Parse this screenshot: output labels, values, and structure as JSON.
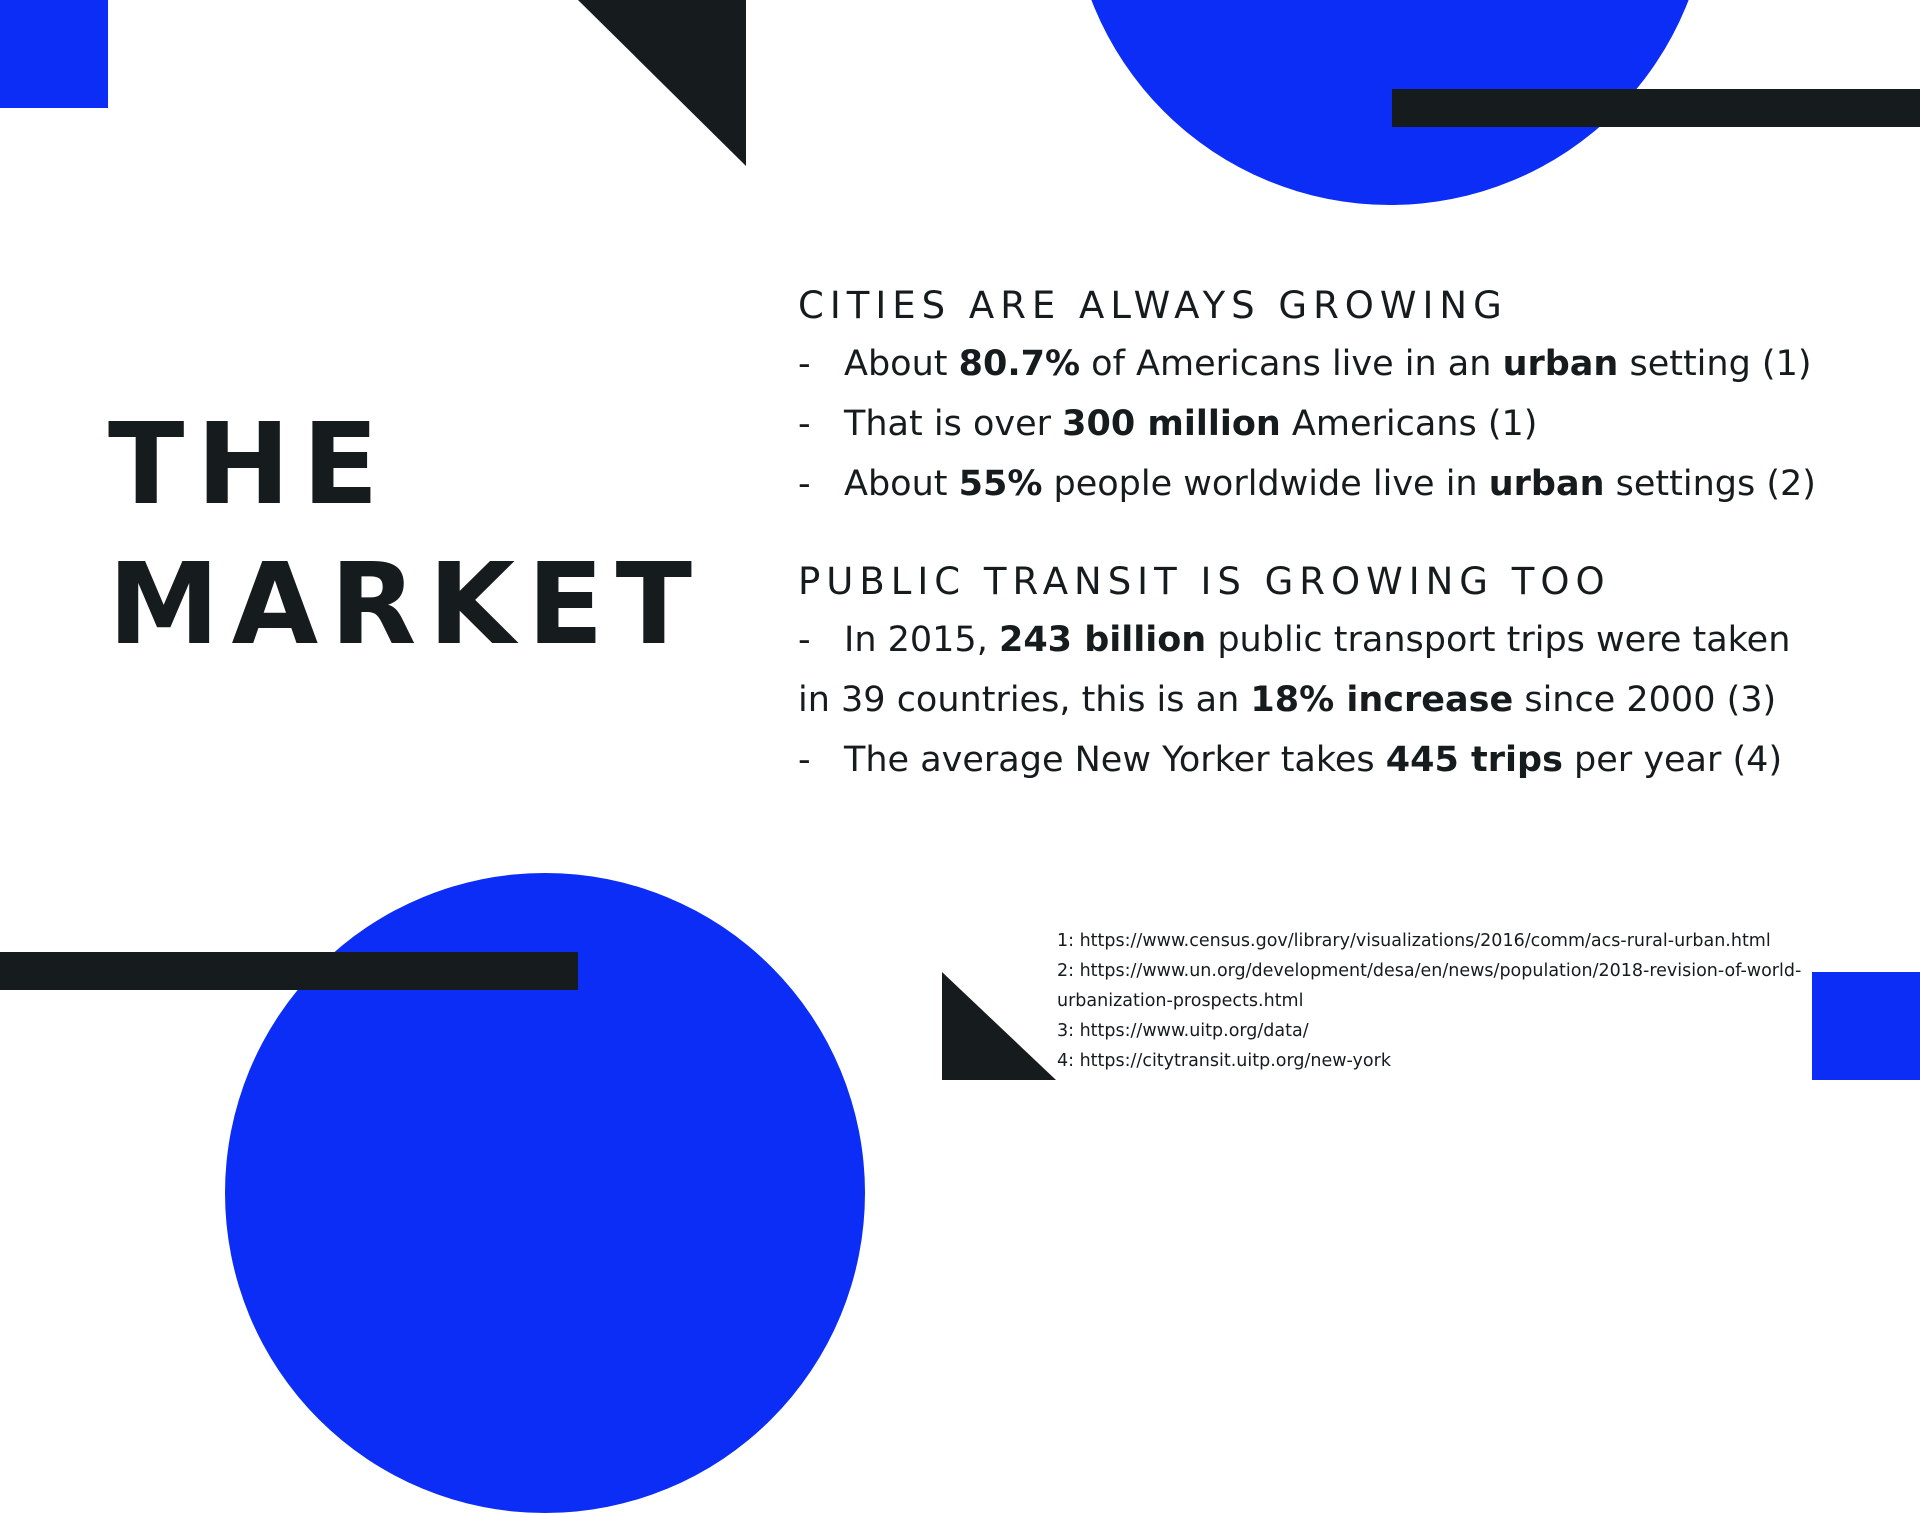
{
  "title": {
    "line1": "THE",
    "line2": "MARKET"
  },
  "section1": {
    "heading": "CITIES ARE ALWAYS GROWING",
    "bullets": [
      {
        "dash": "-",
        "t1": "About ",
        "b1": "80.7%",
        "t2": " of Americans live in an ",
        "b2": "urban",
        "t3": " setting (1)"
      },
      {
        "dash": "-",
        "t1": "That is over ",
        "b1": "300 million",
        "t2": " Americans (1)"
      },
      {
        "dash": "-",
        "t1": "About ",
        "b1": "55%",
        "t2": " people worldwide live in ",
        "b2": "urban",
        "t3": " settings (2)"
      }
    ]
  },
  "section2": {
    "heading": "PUBLIC TRANSIT IS GROWING TOO",
    "bullets": [
      {
        "dash": "-",
        "t1": "In 2015, ",
        "b1": "243 billion",
        "t2": " public transport trips were taken in 39 countries, this is an ",
        "b2": "18% increase",
        "t3": " since 2000 (3)"
      },
      {
        "dash": "-",
        "t1": "The average New Yorker takes ",
        "b1": "445 trips",
        "t2": " per year (4)"
      }
    ]
  },
  "references": [
    "1: https://www.census.gov/library/visualizations/2016/comm/acs-rural-urban.html",
    "2: https://www.un.org/development/desa/en/news/population/2018-revision-of-world-urbanization-prospects.html",
    "3: https://www.uitp.org/data/",
    "4: https://citytransit.uitp.org/new-york"
  ],
  "colors": {
    "accent": "#0b2df5",
    "dark": "#161c1e",
    "background": "#ffffff"
  }
}
